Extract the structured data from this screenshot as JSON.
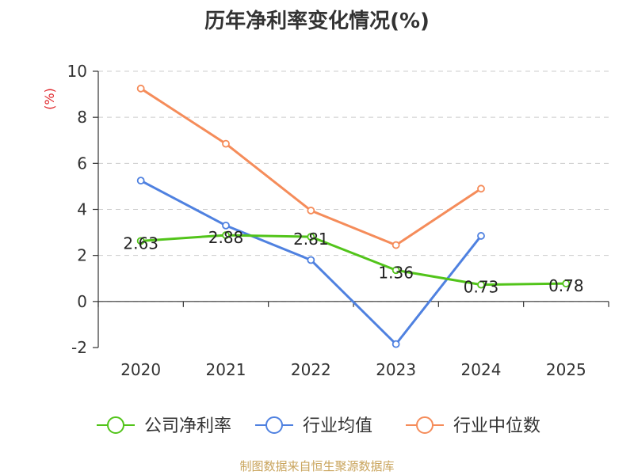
{
  "chart_data": {
    "type": "line",
    "title": "历年净利率变化情况(%)",
    "ylabel": "(%)",
    "xlabel": "",
    "categories": [
      "2020",
      "2021",
      "2022",
      "2023",
      "2024",
      "2025"
    ],
    "ylim": [
      -2,
      10
    ],
    "yticks": [
      -2,
      0,
      2,
      4,
      6,
      8,
      10
    ],
    "grid": true,
    "legend_position": "bottom",
    "series": [
      {
        "name": "公司净利率",
        "color": "#52c41a",
        "values": [
          2.63,
          2.88,
          2.81,
          1.36,
          0.73,
          0.78
        ],
        "show_labels": true
      },
      {
        "name": "行业均值",
        "color": "#4f81e0",
        "values": [
          5.25,
          3.3,
          1.8,
          -1.85,
          2.85,
          null
        ],
        "show_labels": false
      },
      {
        "name": "行业中位数",
        "color": "#f58c5a",
        "values": [
          9.25,
          6.85,
          3.95,
          2.45,
          4.9,
          null
        ],
        "show_labels": false
      }
    ]
  },
  "source": "制图数据来自恒生聚源数据库"
}
